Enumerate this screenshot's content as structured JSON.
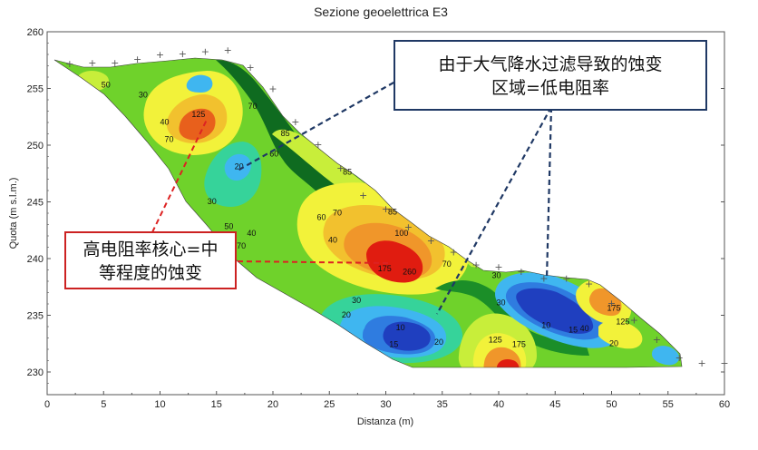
{
  "chart_data": {
    "type": "heatmap",
    "title": "Sezione geoelettrica E3",
    "xlabel": "Distanza (m)",
    "ylabel": "Quota (m s.l.m.)",
    "xlim": [
      0,
      60
    ],
    "ylim": [
      228,
      260
    ],
    "x_ticks": [
      0,
      5,
      10,
      15,
      20,
      25,
      30,
      35,
      40,
      45,
      50,
      55,
      60
    ],
    "y_ticks": [
      230,
      235,
      240,
      245,
      250,
      255,
      260
    ],
    "grid": false,
    "contour_levels": [
      10,
      15,
      20,
      30,
      40,
      50,
      60,
      70,
      85,
      100,
      125,
      150,
      175,
      200,
      260
    ],
    "colors": {
      "r10": "#1f3fbf",
      "r15": "#2f7ce0",
      "r20": "#3fb6f0",
      "r30": "#36d39a",
      "r40": "#2fbf4a",
      "r50": "#6fd22b",
      "r60": "#1b8e28",
      "r70": "#0f6b20",
      "r85": "#c8ee3a",
      "r100": "#f2f23a",
      "r125": "#f2c12e",
      "r150": "#f0962a",
      "r175": "#e8601c",
      "r260": "#e01c10",
      "background": "#ffffff",
      "axis": "#555555"
    },
    "contour_labels": [
      {
        "x": 5.2,
        "y": 255.1,
        "text": "50"
      },
      {
        "x": 8.5,
        "y": 254.2,
        "text": "30"
      },
      {
        "x": 10.4,
        "y": 251.8,
        "text": "40"
      },
      {
        "x": 10.8,
        "y": 250.3,
        "text": "70"
      },
      {
        "x": 13.4,
        "y": 252.5,
        "text": "125"
      },
      {
        "x": 18.2,
        "y": 253.2,
        "text": "70"
      },
      {
        "x": 21.1,
        "y": 250.8,
        "text": "85"
      },
      {
        "x": 20.1,
        "y": 249.0,
        "text": "60"
      },
      {
        "x": 17.0,
        "y": 247.9,
        "text": "20"
      },
      {
        "x": 14.6,
        "y": 244.8,
        "text": "30"
      },
      {
        "x": 16.1,
        "y": 242.6,
        "text": "50"
      },
      {
        "x": 18.1,
        "y": 242.0,
        "text": "40"
      },
      {
        "x": 17.2,
        "y": 240.9,
        "text": "70"
      },
      {
        "x": 24.3,
        "y": 243.4,
        "text": "60"
      },
      {
        "x": 25.3,
        "y": 241.4,
        "text": "40"
      },
      {
        "x": 25.7,
        "y": 243.8,
        "text": "70"
      },
      {
        "x": 26.6,
        "y": 247.4,
        "text": "85"
      },
      {
        "x": 30.6,
        "y": 243.9,
        "text": "85"
      },
      {
        "x": 31.4,
        "y": 242.0,
        "text": "100"
      },
      {
        "x": 29.9,
        "y": 238.9,
        "text": "175"
      },
      {
        "x": 32.1,
        "y": 238.6,
        "text": "260"
      },
      {
        "x": 35.4,
        "y": 239.3,
        "text": "70"
      },
      {
        "x": 27.4,
        "y": 236.1,
        "text": "30"
      },
      {
        "x": 26.5,
        "y": 234.8,
        "text": "20"
      },
      {
        "x": 31.3,
        "y": 233.7,
        "text": "10"
      },
      {
        "x": 30.7,
        "y": 232.2,
        "text": "15"
      },
      {
        "x": 34.7,
        "y": 232.4,
        "text": "20"
      },
      {
        "x": 39.7,
        "y": 232.6,
        "text": "125"
      },
      {
        "x": 41.8,
        "y": 232.2,
        "text": "175"
      },
      {
        "x": 40.2,
        "y": 235.9,
        "text": "30"
      },
      {
        "x": 39.8,
        "y": 238.3,
        "text": "30"
      },
      {
        "x": 44.2,
        "y": 233.9,
        "text": "10"
      },
      {
        "x": 46.6,
        "y": 233.5,
        "text": "15"
      },
      {
        "x": 47.6,
        "y": 233.6,
        "text": "40"
      },
      {
        "x": 50.2,
        "y": 235.4,
        "text": "175"
      },
      {
        "x": 51.0,
        "y": 234.2,
        "text": "125"
      },
      {
        "x": 50.2,
        "y": 232.3,
        "text": "20"
      }
    ],
    "electrodes_x": [
      2,
      4,
      6,
      8,
      10,
      12,
      14,
      16,
      18,
      20,
      22,
      24,
      26,
      28,
      30,
      32,
      34,
      36,
      38,
      40,
      42,
      44,
      46,
      48,
      50,
      52,
      54,
      56,
      58,
      60
    ],
    "electrodes_y": [
      257.2,
      257.3,
      257.3,
      257.6,
      258.0,
      258.1,
      258.3,
      258.4,
      256.9,
      255.0,
      252.1,
      250.1,
      248.0,
      245.6,
      244.4,
      242.8,
      241.6,
      240.6,
      239.5,
      239.3,
      238.9,
      238.3,
      238.3,
      237.8,
      236.1,
      234.6,
      232.9,
      231.3,
      230.8,
      230.8
    ]
  },
  "annotations": {
    "blue_box_line1": "由于大气降水过滤导致的蚀变",
    "blue_box_line2": "区域=低电阻率",
    "red_box_line1": "高电阻率核心=中",
    "red_box_line2": "等程度的蚀变",
    "blue_line_color": "#1f3864",
    "red_line_color": "#dd2222"
  }
}
